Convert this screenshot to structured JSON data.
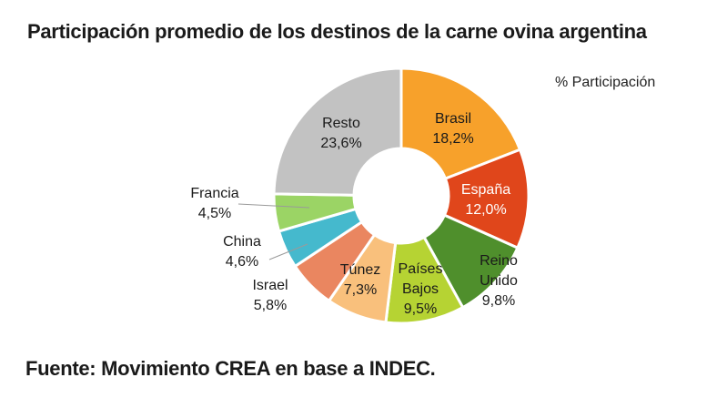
{
  "header": {
    "title": "Participación promedio de los destinos de la carne ovina argentina"
  },
  "note": "% Participación",
  "footer": {
    "source": "Fuente: Movimiento CREA en base a INDEC."
  },
  "chart_data": {
    "type": "pie",
    "donut": true,
    "title": "Participación promedio de los destinos de la carne ovina argentina",
    "value_unit": "%",
    "slices": [
      {
        "label": "Brasil",
        "value": 18.2,
        "value_text": "18,2%",
        "color": "#f7a12b"
      },
      {
        "label": "España",
        "value": 12.0,
        "value_text": "12,0%",
        "color": "#e0461b"
      },
      {
        "label": "Reino Unido",
        "value": 9.8,
        "value_text": "9,8%",
        "color": "#4f8f2c"
      },
      {
        "label": "Países Bajos",
        "value": 9.5,
        "value_text": "9,5%",
        "color": "#b6d333"
      },
      {
        "label": "Túnez",
        "value": 7.3,
        "value_text": "7,3%",
        "color": "#f9c07c"
      },
      {
        "label": "Israel",
        "value": 5.8,
        "value_text": "5,8%",
        "color": "#ea8660"
      },
      {
        "label": "China",
        "value": 4.6,
        "value_text": "4,6%",
        "color": "#45b9cd"
      },
      {
        "label": "Francia",
        "value": 4.5,
        "value_text": "4,5%",
        "color": "#9bd465"
      },
      {
        "label": "Resto",
        "value": 23.6,
        "value_text": "23,6%",
        "color": "#c2c2c2"
      }
    ]
  }
}
